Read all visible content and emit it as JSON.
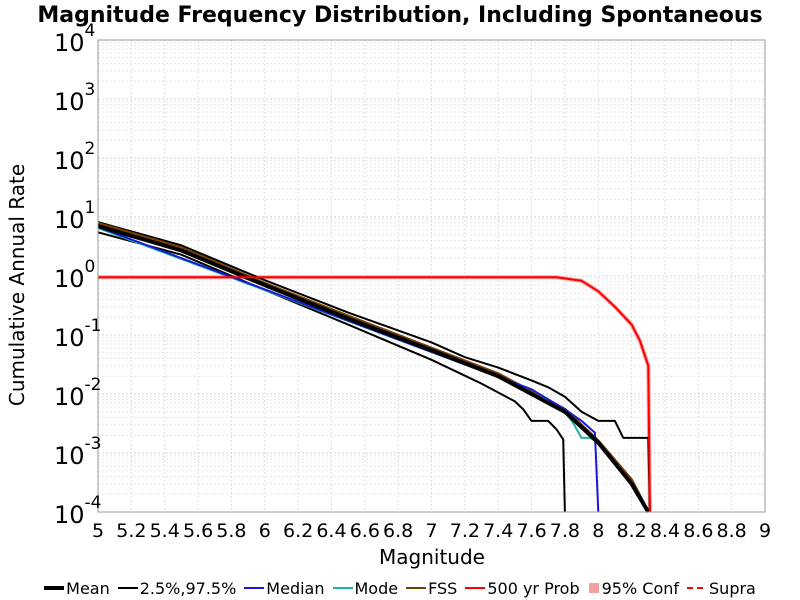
{
  "chart_data": {
    "type": "line",
    "title": "Magnitude Frequency Distribution, Including Spontaneous",
    "xlabel": "Magnitude",
    "ylabel": "Cumulative Annual Rate",
    "xlim": [
      5,
      9
    ],
    "ylim": [
      0.0001,
      10000
    ],
    "y_scale": "log",
    "grid": true,
    "legend_position": "bottom",
    "x_tick_labels": [
      "5",
      "5.2",
      "5.4",
      "5.6",
      "5.8",
      "6",
      "6.2",
      "6.4",
      "6.6",
      "6.8",
      "7",
      "7.2",
      "7.4",
      "7.6",
      "7.8",
      "8",
      "8.2",
      "8.4",
      "8.6",
      "8.8",
      "9"
    ],
    "y_ticks": [
      {
        "base": "10",
        "exp": "-4",
        "value": 0.0001
      },
      {
        "base": "10",
        "exp": "-3",
        "value": 0.001
      },
      {
        "base": "10",
        "exp": "-2",
        "value": 0.01
      },
      {
        "base": "10",
        "exp": "-1",
        "value": 0.1
      },
      {
        "base": "10",
        "exp": "0",
        "value": 1
      },
      {
        "base": "10",
        "exp": "1",
        "value": 10
      },
      {
        "base": "10",
        "exp": "2",
        "value": 100
      },
      {
        "base": "10",
        "exp": "3",
        "value": 1000
      },
      {
        "base": "10",
        "exp": "4",
        "value": 10000
      }
    ],
    "legend": [
      {
        "label": "Mean",
        "color": "#000000",
        "style": "thick"
      },
      {
        "label": "2.5%,97.5%",
        "color": "#000000",
        "style": "thin"
      },
      {
        "label": "Median",
        "color": "#1a1ad6",
        "style": "line"
      },
      {
        "label": "Mode",
        "color": "#20b2a0",
        "style": "line"
      },
      {
        "label": "FSS",
        "color": "#7a3e00",
        "style": "line"
      },
      {
        "label": "500 yr Prob",
        "color": "#ff0000",
        "style": "line"
      },
      {
        "label": "95% Conf",
        "color": "#f4a0a0",
        "style": "box"
      },
      {
        "label": "Supra",
        "color": "#ff0000",
        "style": "dash"
      }
    ],
    "series": [
      {
        "key": "conf95",
        "color": "#f4a0a0",
        "width": 4,
        "x": [
          5.0,
          7.75,
          7.9,
          8.0,
          8.1,
          8.2,
          8.25,
          8.3,
          8.31
        ],
        "y": [
          0.95,
          0.95,
          0.83,
          0.55,
          0.3,
          0.15,
          0.08,
          0.03,
          0.0001
        ]
      },
      {
        "key": "lower",
        "color": "#000000",
        "width": 2,
        "x": [
          5.0,
          5.5,
          6.0,
          6.5,
          7.0,
          7.3,
          7.5,
          7.55,
          7.6,
          7.7,
          7.75,
          7.79,
          7.8
        ],
        "y": [
          5.5,
          2.3,
          0.58,
          0.15,
          0.038,
          0.015,
          0.0075,
          0.0055,
          0.0035,
          0.0035,
          0.0025,
          0.0017,
          0.0001
        ]
      },
      {
        "key": "upper",
        "color": "#000000",
        "width": 2,
        "x": [
          5.0,
          5.5,
          6.0,
          6.5,
          7.0,
          7.2,
          7.4,
          7.6,
          7.7,
          7.8,
          7.9,
          8.0,
          8.1,
          8.15,
          8.2,
          8.25,
          8.3,
          8.31
        ],
        "y": [
          8.2,
          3.3,
          0.85,
          0.24,
          0.075,
          0.042,
          0.028,
          0.017,
          0.013,
          0.009,
          0.005,
          0.0035,
          0.0035,
          0.0018,
          0.0018,
          0.0018,
          0.0018,
          0.0001
        ]
      },
      {
        "key": "fss",
        "color": "#7a3e00",
        "width": 3,
        "x": [
          5.0,
          5.5,
          6.0,
          6.5,
          7.0,
          7.4,
          7.6,
          7.8,
          8.0,
          8.2,
          8.3
        ],
        "y": [
          7.8,
          3.0,
          0.75,
          0.21,
          0.06,
          0.022,
          0.011,
          0.0055,
          0.0016,
          0.00035,
          0.0001
        ]
      },
      {
        "key": "mode",
        "color": "#20b2a0",
        "width": 2,
        "x": [
          5.0,
          7.6,
          7.8,
          7.85,
          7.9,
          7.95,
          8.0
        ],
        "y": [
          6.5,
          0.012,
          0.0052,
          0.0032,
          0.0018,
          0.0018,
          0.0015
        ]
      },
      {
        "key": "median",
        "color": "#1a1ad6",
        "width": 2,
        "x": [
          5.0,
          7.6,
          7.8,
          7.9,
          7.98,
          8.0
        ],
        "y": [
          6.8,
          0.012,
          0.0055,
          0.0035,
          0.0022,
          0.0001
        ]
      },
      {
        "key": "mean",
        "color": "#000000",
        "width": 4,
        "x": [
          5.0,
          5.5,
          6.0,
          6.5,
          7.0,
          7.4,
          7.6,
          7.8,
          8.0,
          8.2,
          8.3
        ],
        "y": [
          7.0,
          2.7,
          0.7,
          0.19,
          0.055,
          0.02,
          0.01,
          0.005,
          0.0015,
          0.0003,
          0.0001
        ]
      },
      {
        "key": "prob500",
        "color": "#ff0000",
        "width": 2,
        "x": [
          5.0,
          7.75,
          7.9,
          8.0,
          8.1,
          8.2,
          8.25,
          8.3,
          8.31
        ],
        "y": [
          0.95,
          0.95,
          0.83,
          0.55,
          0.3,
          0.15,
          0.08,
          0.03,
          0.0001
        ]
      }
    ]
  }
}
